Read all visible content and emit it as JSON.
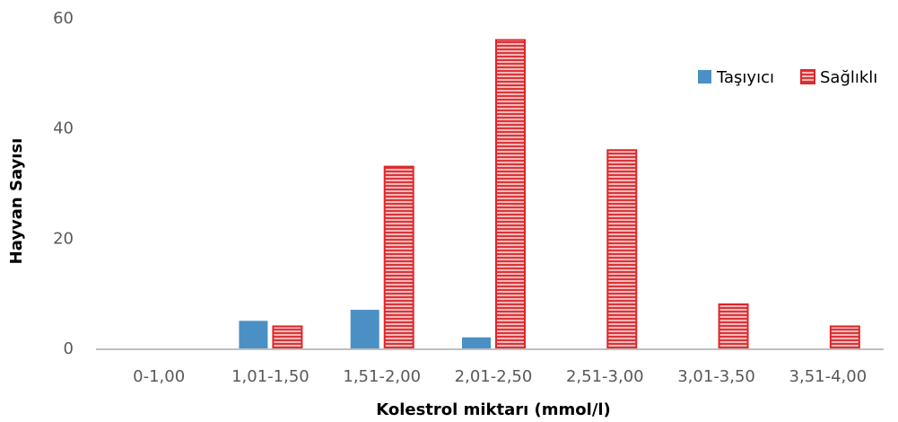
{
  "chart_data": {
    "type": "bar",
    "title": "",
    "xlabel": "Kolestrol miktarı (mmol/l)",
    "ylabel": "Hayvan Sayısı",
    "categories": [
      "0-1,00",
      "1,01-1,50",
      "1,51-2,00",
      "2,01-2,50",
      "2,51-3,00",
      "3,01-3,50",
      "3,51-4,00"
    ],
    "series": [
      {
        "name": "Taşıyıcı",
        "values": [
          0,
          5,
          7,
          2,
          0,
          0,
          0
        ],
        "color": "#4a90c4"
      },
      {
        "name": "Sağlıklı",
        "values": [
          0,
          4,
          33,
          56,
          36,
          8,
          4
        ],
        "color": "#e0262a",
        "pattern": "horizontal-stripes"
      }
    ],
    "ylim": [
      0,
      60
    ],
    "yticks": [
      0,
      20,
      40,
      60
    ],
    "grid": false,
    "legend": "top-right"
  }
}
